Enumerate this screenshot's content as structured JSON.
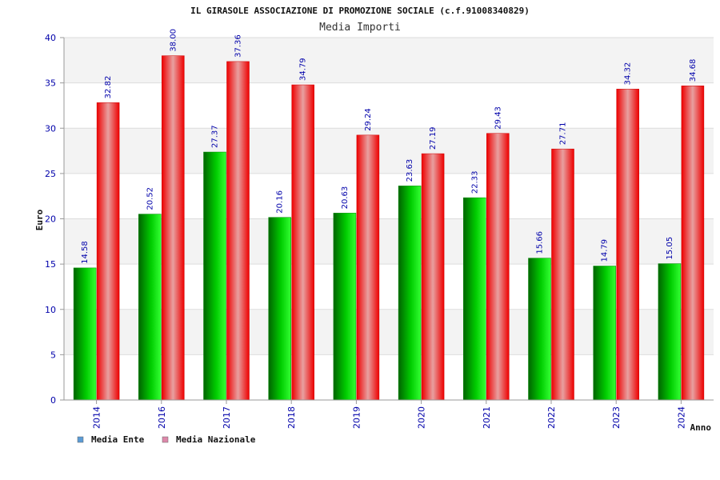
{
  "chart_data": {
    "type": "bar",
    "title": "IL GIRASOLE ASSOCIAZIONE DI PROMOZIONE SOCIALE (c.f.91008340829)",
    "subtitle": "Media Importi",
    "xlabel": "Anno",
    "ylabel": "Euro",
    "ylim": [
      0,
      40
    ],
    "yticks": [
      0,
      5,
      10,
      15,
      20,
      25,
      30,
      35,
      40
    ],
    "grid": true,
    "legend_position": "bottom-left",
    "categories": [
      "2014",
      "2016",
      "2017",
      "2018",
      "2019",
      "2020",
      "2021",
      "2022",
      "2023",
      "2024"
    ],
    "series": [
      {
        "name": "Media Ente",
        "color": "#00b400",
        "legend_color": "#5b9bd5",
        "values": [
          14.58,
          20.52,
          27.37,
          20.16,
          20.63,
          23.63,
          22.33,
          15.66,
          14.79,
          15.05
        ],
        "labels": [
          "14.58",
          "20.52",
          "27.37",
          "20.16",
          "20.63",
          "23.63",
          "22.33",
          "15.66",
          "14.79",
          "15.05"
        ]
      },
      {
        "name": "Media Nazionale",
        "color": "#ee0000",
        "legend_color": "#dd88aa",
        "values": [
          32.82,
          38.0,
          37.36,
          34.79,
          29.24,
          27.19,
          29.43,
          27.71,
          34.32,
          34.68
        ],
        "labels": [
          "32.82",
          "38.00",
          "37.36",
          "34.79",
          "29.24",
          "27.19",
          "29.43",
          "27.71",
          "34.32",
          "34.68"
        ]
      }
    ]
  }
}
